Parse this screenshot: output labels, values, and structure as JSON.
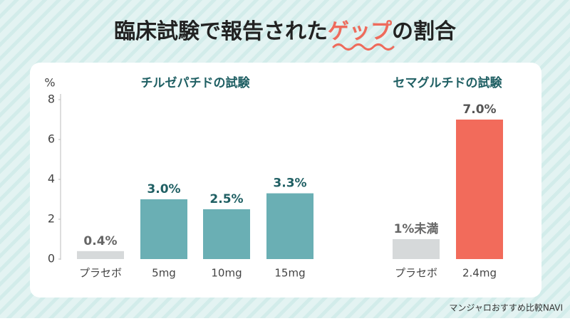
{
  "chart_data": {
    "type": "bar",
    "title": [
      "臨床試験で報告された",
      "ゲップ",
      "の割合"
    ],
    "title_colors": [
      "#222222",
      "#ee6b5c",
      "#222222"
    ],
    "y_label": "%",
    "ylim": [
      0,
      8
    ],
    "yticks": [
      0,
      2,
      4,
      6,
      8
    ],
    "groups": [
      {
        "name": "チルゼパチドの試験",
        "categories": [
          "プラセボ",
          "5mg",
          "10mg",
          "15mg"
        ],
        "values": [
          0.4,
          3.0,
          2.5,
          3.3
        ],
        "value_labels": [
          "0.4%",
          "3.0%",
          "2.5%",
          "3.3%"
        ],
        "colors": [
          "#d6d9da",
          "#6aafb4",
          "#6aafb4",
          "#6aafb4"
        ],
        "label_colors": [
          "#666666",
          "#1f5f63",
          "#1f5f63",
          "#1f5f63"
        ]
      },
      {
        "name": "セマグルチドの試験",
        "categories": [
          "プラセボ",
          "2.4mg"
        ],
        "values": [
          1,
          7.0
        ],
        "value_labels": [
          "1%未満",
          "7.0%"
        ],
        "colors": [
          "#d6d9da",
          "#f26b5b"
        ],
        "label_colors": [
          "#666666",
          "#555555"
        ]
      }
    ],
    "footer": "マンジャロおすすめ比較NAVI"
  }
}
